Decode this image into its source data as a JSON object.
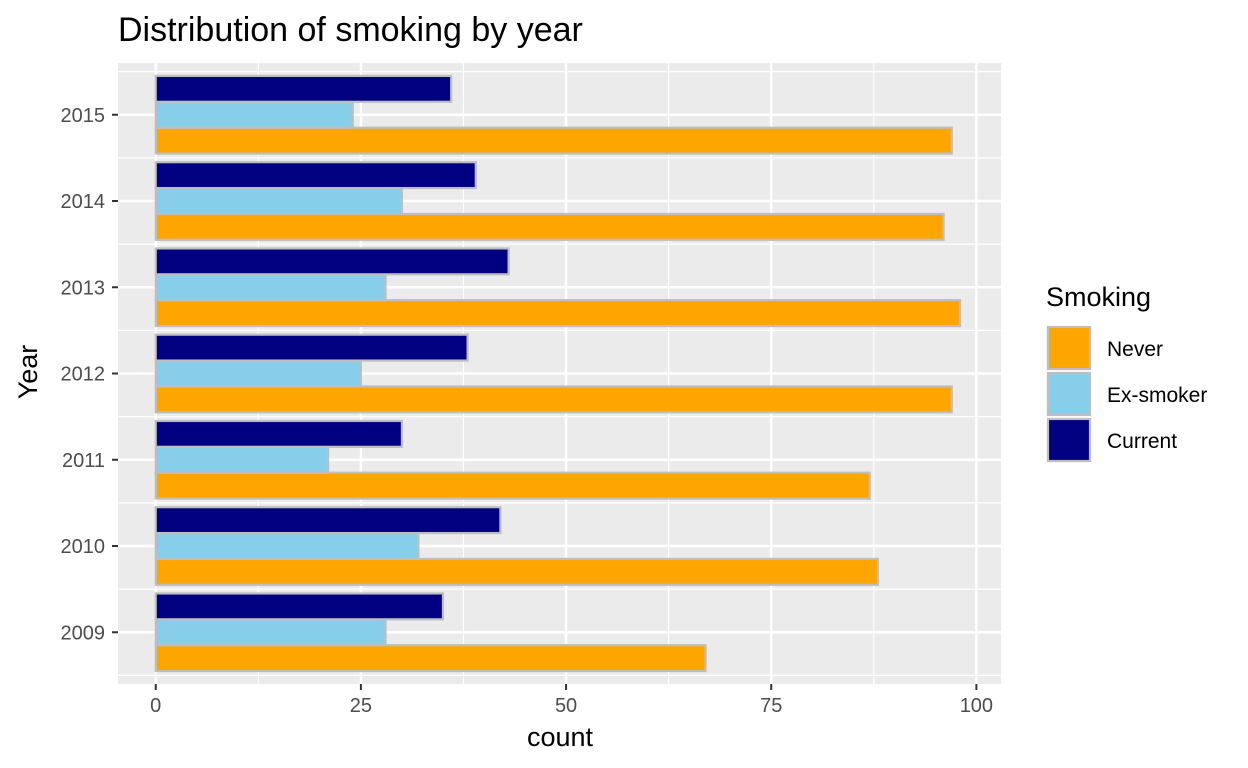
{
  "chart_data": {
    "type": "bar",
    "orientation": "horizontal",
    "title": "Distribution of smoking by year",
    "xlabel": "count",
    "ylabel": "Year",
    "xlim": [
      0,
      103
    ],
    "xticks": [
      0,
      25,
      50,
      75,
      100
    ],
    "xtick_labels": [
      "0",
      "25",
      "50",
      "75",
      "100"
    ],
    "grid": true,
    "categories": [
      "2009",
      "2010",
      "2011",
      "2012",
      "2013",
      "2014",
      "2015"
    ],
    "series": [
      {
        "name": "Never",
        "color": "#FFA500",
        "values": [
          67,
          88,
          87,
          97,
          98,
          96,
          97
        ]
      },
      {
        "name": "Ex-smoker",
        "color": "#87CEEB",
        "values": [
          28,
          32,
          21,
          25,
          28,
          30,
          24
        ]
      },
      {
        "name": "Current",
        "color": "#000080",
        "values": [
          35,
          42,
          30,
          38,
          43,
          39,
          36
        ]
      }
    ],
    "legend": {
      "title": "Smoking",
      "placement": "right",
      "entries": [
        "Never",
        "Ex-smoker",
        "Current"
      ]
    },
    "colors": {
      "panel_background": "#EBEBEB",
      "grid_major": "#FFFFFF",
      "bar_outline": "#BEBEBE"
    }
  }
}
